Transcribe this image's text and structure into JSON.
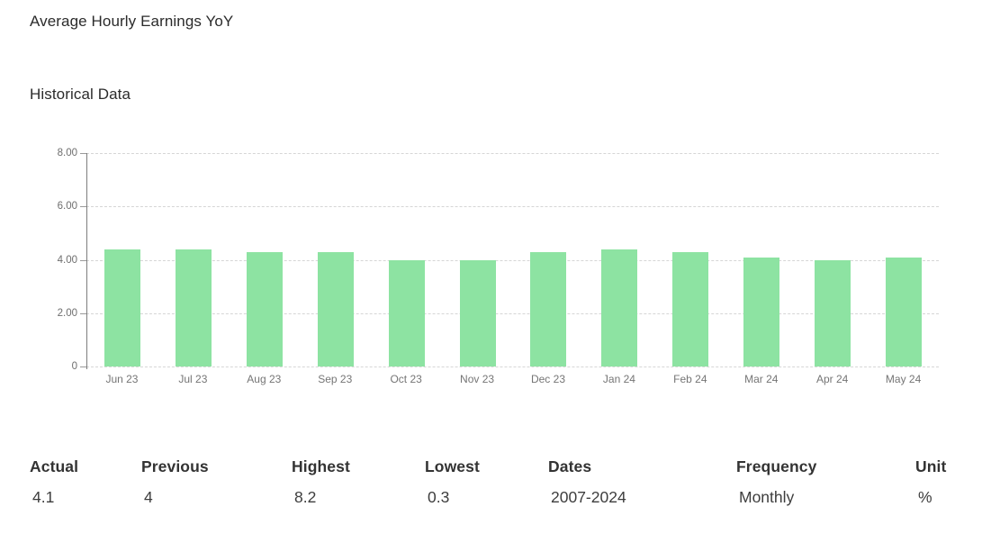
{
  "page": {
    "title": "Average Hourly Earnings YoY",
    "section_title": "Historical Data"
  },
  "chart_data": {
    "type": "bar",
    "title": "Average Hourly Earnings YoY",
    "subtitle": "Historical Data",
    "categories": [
      "Jun 23",
      "Jul 23",
      "Aug 23",
      "Sep 23",
      "Oct 23",
      "Nov 23",
      "Dec 23",
      "Jan 24",
      "Feb 24",
      "Mar 24",
      "Apr 24",
      "May 24"
    ],
    "values": [
      4.4,
      4.4,
      4.3,
      4.3,
      4.0,
      4.0,
      4.3,
      4.4,
      4.3,
      4.1,
      4.0,
      4.1
    ],
    "ylim": [
      0,
      8
    ],
    "yticks": [
      {
        "value": 8,
        "label": "8.00"
      },
      {
        "value": 6,
        "label": "6.00"
      },
      {
        "value": 4,
        "label": "4.00"
      },
      {
        "value": 2,
        "label": "2.00"
      },
      {
        "value": 0,
        "label": "0"
      }
    ],
    "xlabel": "",
    "ylabel": "",
    "grid": "horizontal-dashed",
    "legend": "none",
    "bar_color": "#8de3a2",
    "gridline_color": "#d6d6d6",
    "axis_color": "#7d7d7d"
  },
  "summary": {
    "columns": [
      {
        "label": "Actual",
        "value": "4.1"
      },
      {
        "label": "Previous",
        "value": "4"
      },
      {
        "label": "Highest",
        "value": "8.2"
      },
      {
        "label": "Lowest",
        "value": "0.3"
      },
      {
        "label": "Dates",
        "value": "2007-2024"
      },
      {
        "label": "Frequency",
        "value": "Monthly"
      },
      {
        "label": "Unit",
        "value": "%"
      }
    ]
  }
}
